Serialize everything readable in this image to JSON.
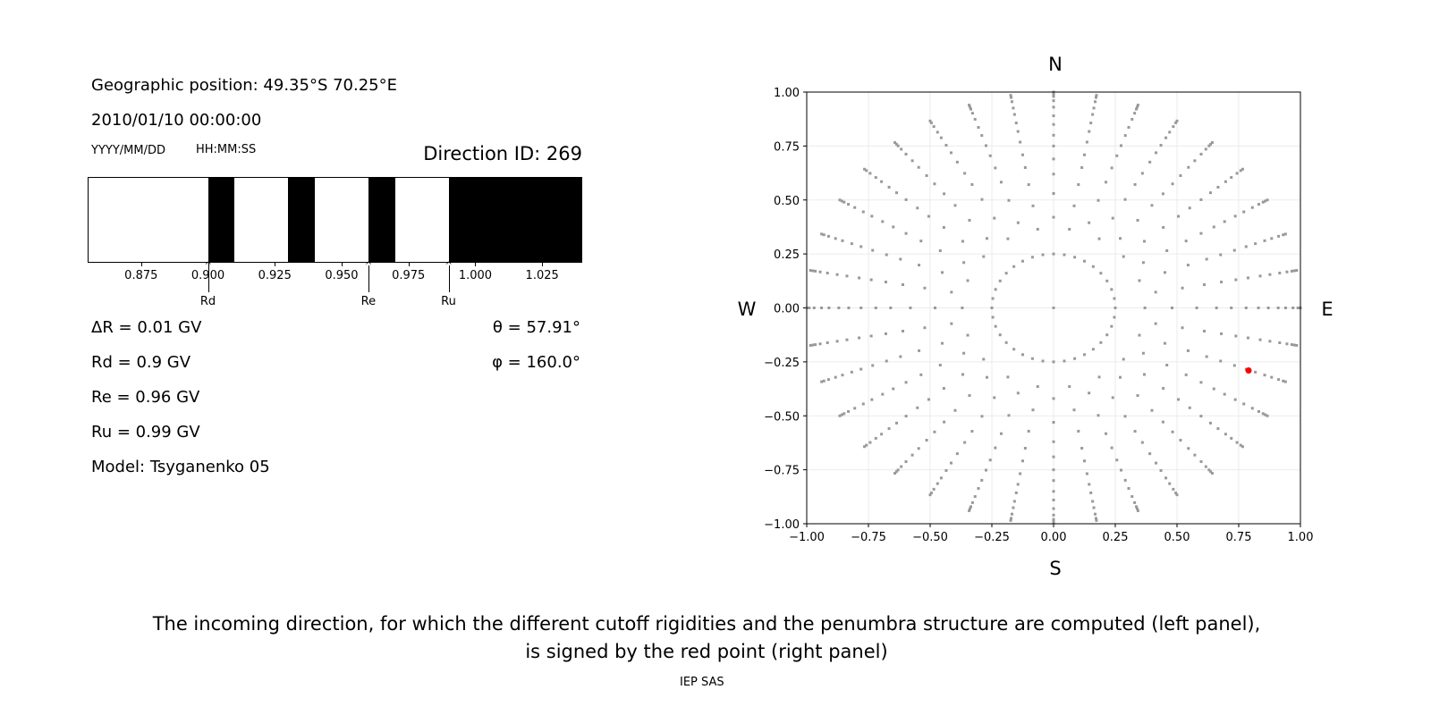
{
  "left_panel": {
    "geo_position": "Geographic position: 49.35°S 70.25°E",
    "datetime": "2010/01/10 00:00:00",
    "date_format_label": "YYYY/MM/DD",
    "time_format_label": "HH:MM:SS",
    "direction_id": "Direction ID: 269",
    "delta_r": "ΔR = 0.01 GV",
    "rd": "Rd = 0.9 GV",
    "re": "Re = 0.96 GV",
    "ru": "Ru = 0.99 GV",
    "model": "Model: Tsyganenko 05",
    "theta": "θ = 57.91°",
    "phi": "φ = 160.0°"
  },
  "chart_data": [
    {
      "type": "bar",
      "description_role": "penumbra",
      "xlim": [
        0.855,
        1.04
      ],
      "xticks": [
        "0.875",
        "0.900",
        "0.925",
        "0.950",
        "0.975",
        "1.000",
        "1.025"
      ],
      "xtick_values": [
        0.875,
        0.9,
        0.925,
        0.95,
        0.975,
        1.0,
        1.025
      ],
      "forbidden_bands": [
        [
          0.9,
          0.91
        ],
        [
          0.93,
          0.94
        ],
        [
          0.96,
          0.97
        ],
        [
          0.99,
          1.04
        ]
      ],
      "band_color": "#000000",
      "markers": [
        {
          "label": "Rd",
          "value": 0.9
        },
        {
          "label": "Re",
          "value": 0.96
        },
        {
          "label": "Ru",
          "value": 0.99
        }
      ]
    },
    {
      "type": "scatter",
      "xlim": [
        -1.0,
        1.0
      ],
      "ylim": [
        -1.0,
        1.0
      ],
      "xticks": [
        "−1.00",
        "−0.75",
        "−0.50",
        "−0.25",
        "0.00",
        "0.25",
        "0.50",
        "0.75",
        "1.00"
      ],
      "yticks": [
        "−1.00",
        "−0.75",
        "−0.50",
        "−0.25",
        "0.00",
        "0.25",
        "0.50",
        "0.75",
        "1.00"
      ],
      "tick_values": [
        -1,
        -0.75,
        -0.5,
        -0.25,
        0,
        0.25,
        0.5,
        0.75,
        1
      ],
      "grid": true,
      "compass": {
        "north": "N",
        "south": "S",
        "west": "W",
        "east": "E"
      },
      "grid_points": {
        "color": "#999999",
        "center": [
          0,
          0
        ],
        "ring_radius": 0.25,
        "ring_count": 36,
        "ray_step_deg": 10,
        "radii_even_rays": [
          0.42,
          0.53,
          0.62,
          0.69,
          0.75,
          0.8,
          0.85,
          0.89,
          0.93,
          0.96,
          0.98,
          0.99,
          1.0
        ],
        "radii_odd_rays": [
          0.37,
          0.48,
          0.58,
          0.66,
          0.72,
          0.78,
          0.83,
          0.87,
          0.91,
          0.94,
          0.97,
          0.99,
          1.0
        ]
      },
      "selected_point": {
        "x": 0.79,
        "y": -0.29,
        "color": "#ff0000"
      }
    }
  ],
  "caption": {
    "line1": "The incoming direction, for which the different cutoff rigidities and the penumbra structure are computed (left panel),",
    "line2": "is signed by the red point (right panel)"
  },
  "footer": "IEP SAS"
}
